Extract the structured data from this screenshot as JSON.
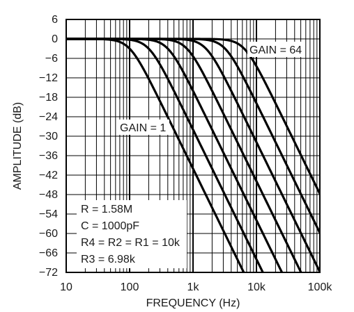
{
  "chart_data": {
    "type": "line",
    "title": "",
    "xlabel": "FREQUENCY (Hz)",
    "ylabel": "AMPLITUDE (dB)",
    "xscale": "log",
    "xlim": [
      10,
      100000
    ],
    "ylim": [
      -72,
      6
    ],
    "grid": true,
    "x_tick_labels": [
      "10",
      "100",
      "1k",
      "10k",
      "100k"
    ],
    "x_ticks": [
      10,
      100,
      1000,
      10000,
      100000
    ],
    "y_ticks": [
      6,
      0,
      -6,
      -12,
      -18,
      -24,
      -30,
      -36,
      -42,
      -48,
      -54,
      -60,
      -66,
      -72
    ],
    "y_tick_labels": [
      "6",
      "0",
      "−6",
      "−12",
      "−18",
      "−24",
      "−30",
      "−36",
      "−42",
      "−48",
      "−54",
      "−60",
      "−66",
      "−72"
    ],
    "series": [
      {
        "cutoff_hz": 100,
        "slope_db_per_decade": -40
      },
      {
        "cutoff_hz": 200,
        "slope_db_per_decade": -40
      },
      {
        "cutoff_hz": 400,
        "slope_db_per_decade": -40
      },
      {
        "cutoff_hz": 800,
        "slope_db_per_decade": -40
      },
      {
        "cutoff_hz": 1600,
        "slope_db_per_decade": -40
      },
      {
        "cutoff_hz": 3200,
        "slope_db_per_decade": -40
      },
      {
        "cutoff_hz": 6400,
        "slope_db_per_decade": -40
      }
    ],
    "annotations": {
      "gain_high": "GAIN = 64",
      "gain_low": "GAIN = 1"
    },
    "legend_box": [
      "R = 1.58M",
      "C = 1000pF",
      "R4 = R2 = R1 = 10k",
      "R3 = 6.98k"
    ]
  }
}
